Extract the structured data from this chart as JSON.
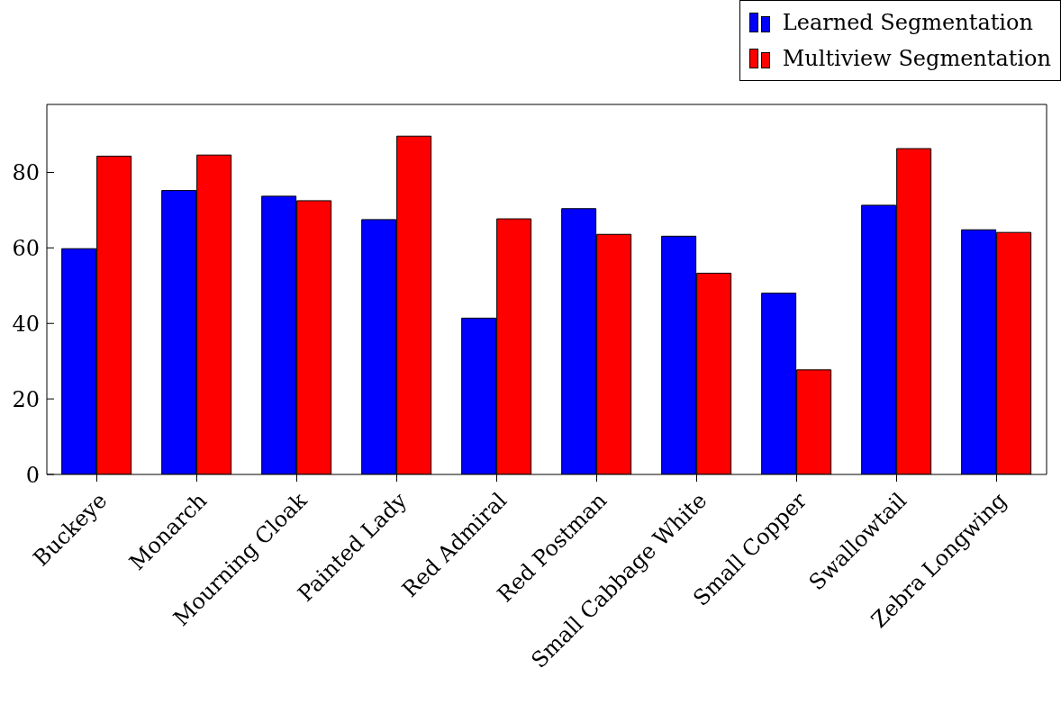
{
  "chart_data": {
    "type": "bar",
    "categories": [
      "Buckeye",
      "Monarch",
      "Mourning Cloak",
      "Painted Lady",
      "Red Admiral",
      "Red Postman",
      "Small Cabbage White",
      "Small Copper",
      "Swallowtail",
      "Zebra Longwing"
    ],
    "series": [
      {
        "name": "Learned Segmentation",
        "color": "#0000ff",
        "values": [
          59.8,
          75.2,
          73.7,
          67.5,
          41.4,
          70.4,
          63.1,
          48.0,
          71.3,
          64.8
        ]
      },
      {
        "name": "Multiview Segmentation",
        "color": "#ff0000",
        "values": [
          84.3,
          84.6,
          72.5,
          89.6,
          67.7,
          63.6,
          53.3,
          27.7,
          86.3,
          64.1
        ]
      }
    ],
    "ylim": [
      0,
      98
    ],
    "yticks": [
      0,
      20,
      40,
      60,
      80
    ],
    "legend": "top right"
  }
}
